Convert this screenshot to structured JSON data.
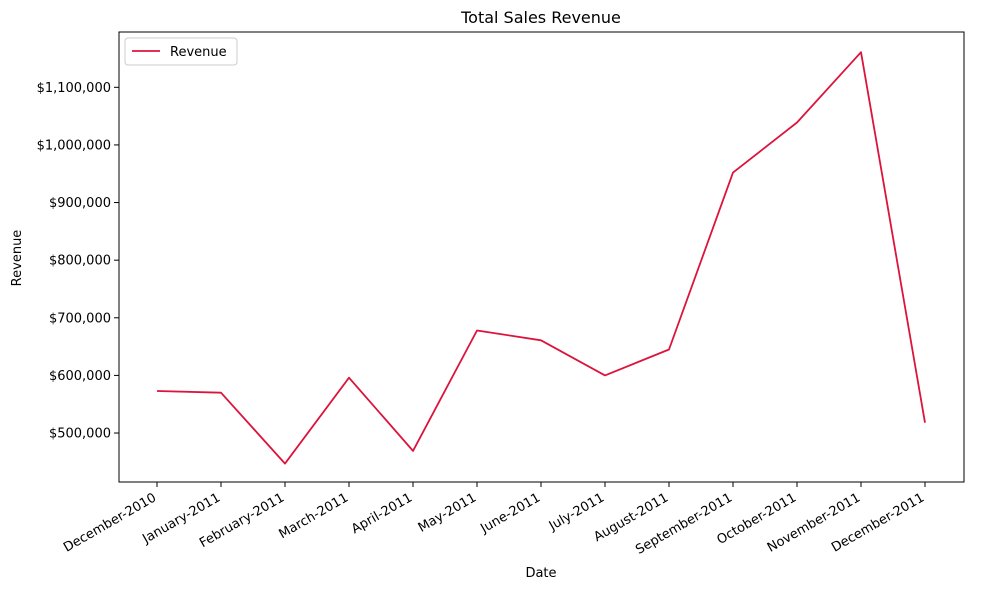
{
  "chart_data": {
    "type": "line",
    "title": "Total Sales Revenue",
    "xlabel": "Date",
    "ylabel": "Revenue",
    "categories": [
      "December-2010",
      "January-2011",
      "February-2011",
      "March-2011",
      "April-2011",
      "May-2011",
      "June-2011",
      "July-2011",
      "August-2011",
      "September-2011",
      "October-2011",
      "November-2011",
      "December-2011"
    ],
    "series": [
      {
        "name": "Revenue",
        "color": "#dc143c",
        "values": [
          573000,
          570000,
          447000,
          596000,
          469000,
          678000,
          661000,
          600000,
          645000,
          952000,
          1039000,
          1161000,
          518000
        ]
      }
    ],
    "ylim": [
      415000,
      1196000
    ],
    "yticks": [
      500000,
      600000,
      700000,
      800000,
      900000,
      1000000,
      1100000
    ],
    "ytick_labels": [
      "$500,000",
      "$600,000",
      "$700,000",
      "$800,000",
      "$900,000",
      "$1,000,000",
      "$1,100,000"
    ],
    "grid": false,
    "legend_position": "top-left"
  }
}
